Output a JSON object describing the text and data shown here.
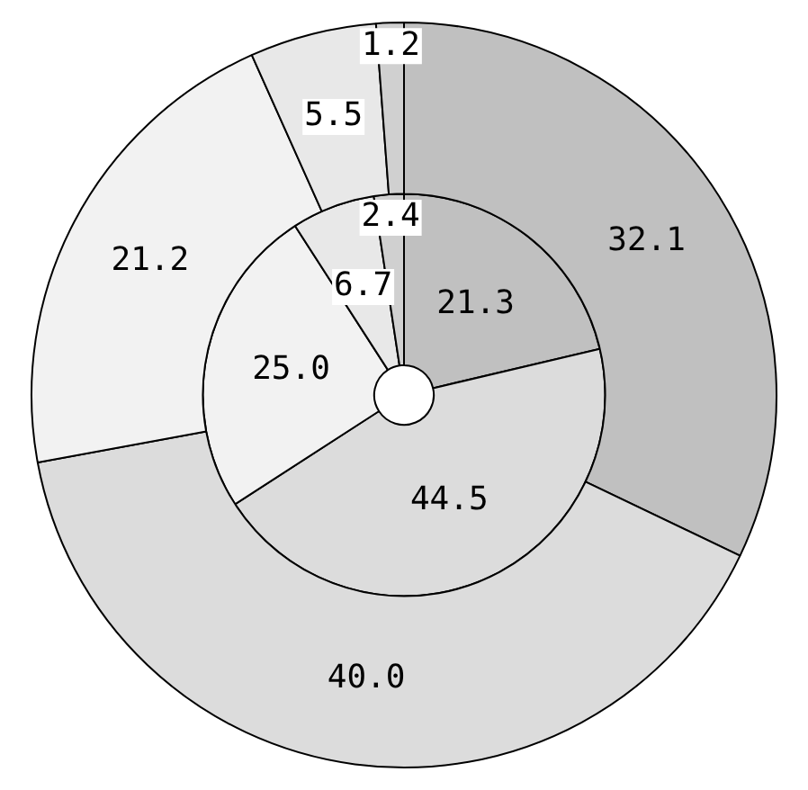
{
  "chart_data": {
    "type": "donut",
    "categories": [
      null,
      null,
      null,
      null,
      null
    ],
    "series": [
      {
        "values": [
          32.1,
          40.0,
          21.2,
          5.5,
          1.2
        ],
        "value_labels": [
          "32.1",
          "40.0",
          "21.2",
          "5.5",
          "1.2"
        ],
        "colors": [
          "#c0c0c0",
          "#dcdcdc",
          "#f2f2f2",
          "#e8e8e8",
          "#d0d0d0"
        ]
      },
      {
        "values": [
          21.3,
          44.5,
          25.0,
          6.7,
          2.4
        ],
        "value_labels": [
          "21.3",
          "44.5",
          "25.0",
          "6.7",
          "2.4"
        ],
        "colors": [
          "#c0c0c0",
          "#dcdcdc",
          "#f2f2f2",
          "#e8e8e8",
          "#d0d0d0"
        ]
      }
    ],
    "legend": false
  }
}
